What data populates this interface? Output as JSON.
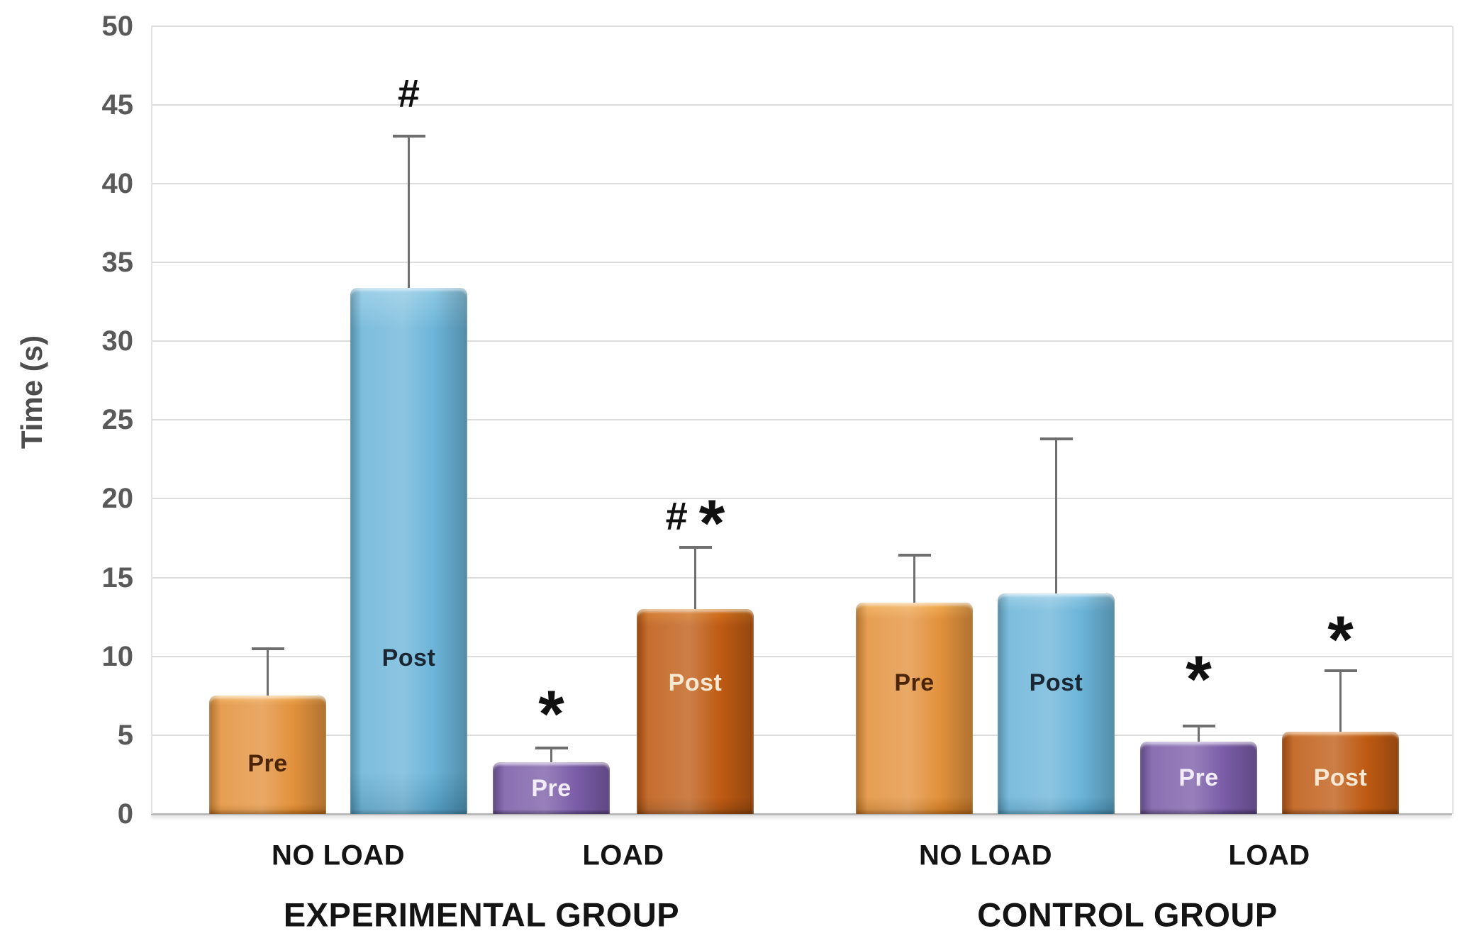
{
  "chart_data": {
    "type": "bar",
    "title": "",
    "ylabel": "Time (s)",
    "xlabel": "",
    "ylim": [
      0,
      50
    ],
    "ytick_step": 5,
    "yticks": [
      0,
      5,
      10,
      15,
      20,
      25,
      30,
      35,
      40,
      45,
      50
    ],
    "grid": "horizontal-only",
    "legend": "none",
    "error_bars": "upper-only",
    "annotation_legend_chars": [
      "#",
      "*"
    ],
    "groups": [
      {
        "label": "EXPERIMENTAL GROUP",
        "categories": [
          {
            "label": "NO LOAD",
            "bars": [
              {
                "series": "Pre",
                "value": 7.5,
                "error_top": 10.5,
                "color_key": "orange",
                "annotation": "",
                "annotation_y": null,
                "label_y": 3.2
              },
              {
                "series": "Post",
                "value": 33.4,
                "error_top": 43.0,
                "color_key": "blue",
                "annotation": "#",
                "annotation_y": 45.7,
                "label_y": 9.9
              }
            ]
          },
          {
            "label": "LOAD",
            "bars": [
              {
                "series": "Pre",
                "value": 3.3,
                "error_top": 4.2,
                "color_key": "purple",
                "annotation": "*",
                "annotation_y": 6.8,
                "label_y": 1.6
              },
              {
                "series": "Post",
                "value": 13.0,
                "error_top": 16.9,
                "color_key": "darkorange",
                "annotation": "# *",
                "annotation_y": 18.9,
                "label_y": 8.3
              }
            ]
          }
        ]
      },
      {
        "label": "CONTROL GROUP",
        "categories": [
          {
            "label": "NO LOAD",
            "bars": [
              {
                "series": "Pre",
                "value": 13.4,
                "error_top": 16.4,
                "color_key": "orange",
                "annotation": "",
                "annotation_y": null,
                "label_y": 8.3
              },
              {
                "series": "Post",
                "value": 14.0,
                "error_top": 23.8,
                "color_key": "blue",
                "annotation": "",
                "annotation_y": null,
                "label_y": 8.3
              }
            ]
          },
          {
            "label": "LOAD",
            "bars": [
              {
                "series": "Pre",
                "value": 4.6,
                "error_top": 5.6,
                "color_key": "purple",
                "annotation": "*",
                "annotation_y": 9.0,
                "label_y": 2.3
              },
              {
                "series": "Post",
                "value": 5.2,
                "error_top": 9.1,
                "color_key": "darkorange",
                "annotation": "*",
                "annotation_y": 11.5,
                "label_y": 2.3
              }
            ]
          }
        ]
      }
    ],
    "colors": {
      "orange": {
        "body": "#e2913c",
        "light": "#f3ae55",
        "dark": "#c2731f",
        "text": "#4a2508"
      },
      "blue": {
        "body": "#6bb4d8",
        "light": "#8fc9e4",
        "dark": "#4e96bb",
        "text": "#1a2733"
      },
      "purple": {
        "body": "#7a5ca7",
        "light": "#9880be",
        "dark": "#5e4486",
        "text": "#f1ecf8"
      },
      "darkorange": {
        "body": "#be5a13",
        "light": "#d4761f",
        "dark": "#9c4a0e",
        "text": "#f6e8d2"
      },
      "gridline": "#dcdcdc",
      "axis_line": "#b9b9b9",
      "error_bar": "#6f6f6f",
      "tick_text": "#595959",
      "label_text": "#141414"
    }
  }
}
